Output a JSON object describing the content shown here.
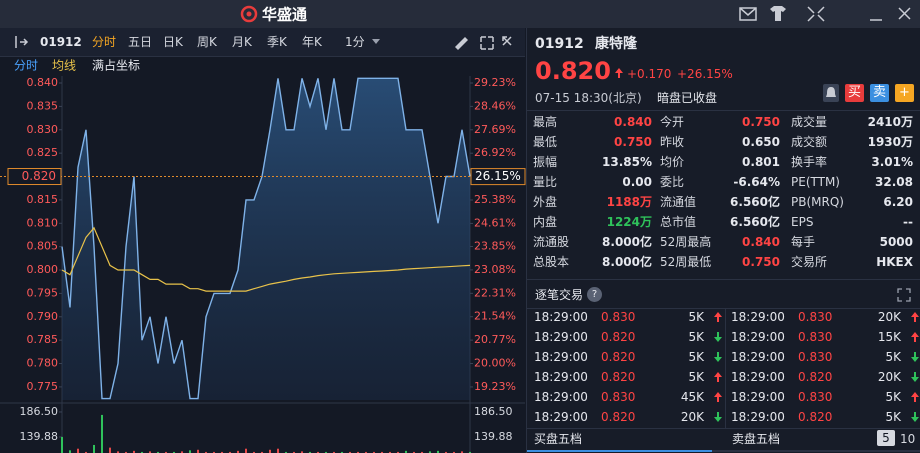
{
  "header": {
    "logo": "华盛通"
  },
  "toolbar": {
    "code": "01912",
    "tabs": [
      "分时",
      "五日",
      "日K",
      "周K",
      "月K",
      "季K",
      "年K",
      "1分"
    ]
  },
  "chart": {
    "type": "line",
    "extra_option": "满占坐标",
    "series": [
      {
        "name": "分时",
        "color": "#7fb2e8",
        "values": [
          0.805,
          0.792,
          0.822,
          0.83,
          0.805,
          0.7725,
          0.7725,
          0.78,
          0.805,
          0.82,
          0.785,
          0.79,
          0.78,
          0.79,
          0.78,
          0.785,
          0.7725,
          0.7725,
          0.79,
          0.795,
          0.795,
          0.795,
          0.8,
          0.815,
          0.815,
          0.82,
          0.83,
          0.841,
          0.83,
          0.83,
          0.841,
          0.835,
          0.841,
          0.83,
          0.841,
          0.83,
          0.83,
          0.841,
          0.841,
          0.841,
          0.841,
          0.841,
          0.841,
          0.83,
          0.83,
          0.83,
          0.82,
          0.81,
          0.82,
          0.82,
          0.83,
          0.82
        ]
      },
      {
        "name": "均线",
        "color": "#e8c24a",
        "values": [
          0.8,
          0.799,
          0.803,
          0.807,
          0.809,
          0.805,
          0.801,
          0.8,
          0.8,
          0.8,
          0.799,
          0.798,
          0.798,
          0.797,
          0.797,
          0.797,
          0.796,
          0.796,
          0.7955,
          0.7955,
          0.7955,
          0.7955,
          0.7955,
          0.7955,
          0.796,
          0.7965,
          0.797,
          0.7973,
          0.7976,
          0.798,
          0.7983,
          0.7985,
          0.7988,
          0.799,
          0.7992,
          0.7993,
          0.7994,
          0.7995,
          0.7996,
          0.7997,
          0.7998,
          0.7999,
          0.8,
          0.8002,
          0.8003,
          0.8004,
          0.8005,
          0.8006,
          0.8007,
          0.8008,
          0.8009,
          0.801
        ]
      }
    ],
    "ylim": [
      0.7722,
      0.8415
    ],
    "yticks": [
      {
        "value": 0.84,
        "label": "0.840"
      },
      {
        "value": 0.835,
        "label": "0.835"
      },
      {
        "value": 0.83,
        "label": "0.830"
      },
      {
        "value": 0.825,
        "label": "0.825"
      },
      {
        "value": 0.815,
        "label": "0.815"
      },
      {
        "value": 0.81,
        "label": "0.810"
      },
      {
        "value": 0.805,
        "label": "0.805"
      },
      {
        "value": 0.8,
        "label": "0.800"
      },
      {
        "value": 0.795,
        "label": "0.795"
      },
      {
        "value": 0.79,
        "label": "0.790"
      },
      {
        "value": 0.785,
        "label": "0.785"
      },
      {
        "value": 0.78,
        "label": "0.780"
      },
      {
        "value": 0.775,
        "label": "0.775"
      }
    ],
    "y2lim": [
      18.8,
      29.46
    ],
    "y2ticks": [
      {
        "value": 29.23,
        "label": "29.23%"
      },
      {
        "value": 28.46,
        "label": "28.46%"
      },
      {
        "value": 27.69,
        "label": "27.69%"
      },
      {
        "value": 26.92,
        "label": "26.92%"
      },
      {
        "value": 25.38,
        "label": "25.38%"
      },
      {
        "value": 24.61,
        "label": "24.61%"
      },
      {
        "value": 23.85,
        "label": "23.85%"
      },
      {
        "value": 23.08,
        "label": "23.08%"
      },
      {
        "value": 22.31,
        "label": "22.31%"
      },
      {
        "value": 21.54,
        "label": "21.54%"
      },
      {
        "value": 20.77,
        "label": "20.77%"
      },
      {
        "value": 20,
        "label": "20.00%"
      },
      {
        "value": 19.23,
        "label": "19.23%"
      }
    ],
    "current": {
      "value": 0.82,
      "label": "0.820",
      "pct": {
        "value": 26.15,
        "label": "26.15%"
      }
    },
    "volume": {
      "up_color": "#e84848",
      "down_color": "#2fc25b",
      "ylim": [
        110,
        199.5
      ],
      "ticks": [
        {
          "value": 186.5,
          "label": "186.50"
        },
        {
          "value": 139.88,
          "label": "139.88"
        }
      ],
      "values": [
        140,
        115,
        118,
        112,
        125,
        181,
        120,
        113,
        112,
        114,
        112,
        113,
        112,
        112,
        112,
        113,
        115,
        116,
        112,
        112,
        112,
        112,
        114,
        118,
        112,
        112,
        116,
        118,
        112,
        112,
        113,
        112,
        112,
        112,
        112,
        112,
        112,
        112,
        112,
        112,
        112,
        112,
        112,
        114,
        112,
        112,
        113,
        114,
        112,
        112,
        113,
        112
      ]
    }
  },
  "quote": {
    "code": "01912",
    "name": "康特隆",
    "price": "0.820",
    "change": "+0.170",
    "change_pct": "+26.15%",
    "time": "07-15  18:30(北京)",
    "status": "暗盘已收盘",
    "buttons": [
      "买",
      "卖",
      "+"
    ]
  },
  "stats": [
    [
      {
        "label": "最高",
        "value": "0.840",
        "tone": "up"
      },
      {
        "label": "今开",
        "value": "0.750",
        "tone": "up"
      },
      {
        "label": "成交量",
        "value": "2410万",
        "tone": "flat"
      }
    ],
    [
      {
        "label": "最低",
        "value": "0.750",
        "tone": "up"
      },
      {
        "label": "昨收",
        "value": "0.650",
        "tone": "flat"
      },
      {
        "label": "成交额",
        "value": "1930万",
        "tone": "flat"
      }
    ],
    [
      {
        "label": "振幅",
        "value": "13.85%",
        "tone": "flat"
      },
      {
        "label": "均价",
        "value": "0.801",
        "tone": "flat"
      },
      {
        "label": "换手率",
        "value": "3.01%",
        "tone": "flat"
      }
    ],
    [
      {
        "label": "量比",
        "value": "0.00",
        "tone": "flat"
      },
      {
        "label": "委比",
        "value": "-6.64%",
        "tone": "flat"
      },
      {
        "label": "PE(TTM)",
        "value": "32.08",
        "tone": "flat"
      }
    ],
    [
      {
        "label": "外盘",
        "value": "1188万",
        "tone": "up"
      },
      {
        "label": "流通值",
        "value": "6.560亿",
        "tone": "flat"
      },
      {
        "label": "PB(MRQ)",
        "value": "6.20",
        "tone": "flat"
      }
    ],
    [
      {
        "label": "内盘",
        "value": "1224万",
        "tone": "down"
      },
      {
        "label": "总市值",
        "value": "6.560亿",
        "tone": "flat"
      },
      {
        "label": "EPS",
        "value": "--",
        "tone": "flat"
      }
    ],
    [
      {
        "label": "流通股",
        "value": "8.000亿",
        "tone": "flat"
      },
      {
        "label": "52周最高",
        "value": "0.840",
        "tone": "up"
      },
      {
        "label": "每手",
        "value": "5000",
        "tone": "flat"
      }
    ],
    [
      {
        "label": "总股本",
        "value": "8.000亿",
        "tone": "flat"
      },
      {
        "label": "52周最低",
        "value": "0.750",
        "tone": "up"
      },
      {
        "label": "交易所",
        "value": "HKEX",
        "tone": "flat"
      }
    ]
  ],
  "trades": {
    "title": "逐笔交易",
    "help": "?",
    "left": [
      {
        "time": "18:29:00",
        "price": "0.830",
        "volume": "5K",
        "dir": "up"
      },
      {
        "time": "18:29:00",
        "price": "0.820",
        "volume": "5K",
        "dir": "down"
      },
      {
        "time": "18:29:00",
        "price": "0.820",
        "volume": "5K",
        "dir": "down"
      },
      {
        "time": "18:29:00",
        "price": "0.820",
        "volume": "5K",
        "dir": "up"
      },
      {
        "time": "18:29:00",
        "price": "0.830",
        "volume": "45K",
        "dir": "up"
      },
      {
        "time": "18:29:00",
        "price": "0.820",
        "volume": "20K",
        "dir": "down"
      }
    ],
    "right": [
      {
        "time": "18:29:00",
        "price": "0.830",
        "volume": "20K",
        "dir": "up"
      },
      {
        "time": "18:29:00",
        "price": "0.830",
        "volume": "15K",
        "dir": "up"
      },
      {
        "time": "18:29:00",
        "price": "0.830",
        "volume": "5K",
        "dir": "down"
      },
      {
        "time": "18:29:00",
        "price": "0.820",
        "volume": "20K",
        "dir": "down"
      },
      {
        "time": "18:29:00",
        "price": "0.830",
        "volume": "5K",
        "dir": "up"
      },
      {
        "time": "18:29:00",
        "price": "0.820",
        "volume": "5K",
        "dir": "down"
      }
    ]
  },
  "order_book": {
    "tabs": [
      "买盘五档",
      "卖盘五档"
    ],
    "depth": [
      "5",
      "10"
    ]
  }
}
